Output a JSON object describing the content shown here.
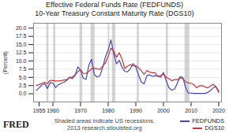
{
  "chart_data": {
    "type": "line",
    "title": "Effective Federal Funds Rate (FEDFUNDS)",
    "subtitle": "10-Year Treasury Constant Maturity Rate (DGS10)",
    "ylabel": "(Percent)",
    "annotations": [
      "FRED",
      "Shaded areas indicate US recessions.",
      "2013 research.stlouisfed.org"
    ],
    "x": [
      1954,
      1955,
      1956,
      1957,
      1958,
      1959,
      1960,
      1961,
      1962,
      1963,
      1964,
      1965,
      1966,
      1967,
      1968,
      1969,
      1970,
      1971,
      1972,
      1973,
      1974,
      1975,
      1976,
      1977,
      1978,
      1979,
      1980,
      1981,
      1982,
      1983,
      1984,
      1985,
      1986,
      1987,
      1988,
      1989,
      1990,
      1991,
      1992,
      1993,
      1994,
      1995,
      1996,
      1997,
      1998,
      1999,
      2000,
      2001,
      2002,
      2003,
      2004,
      2005,
      2006,
      2007,
      2008,
      2009,
      2010,
      2011,
      2012,
      2013,
      2014,
      2015,
      2016,
      2017,
      2018,
      2019,
      2020
    ],
    "series": [
      {
        "name": "FEDFUNDS",
        "color": "#4444bb",
        "values": [
          1.0,
          1.8,
          2.7,
          3.1,
          1.6,
          3.4,
          3.2,
          1.9,
          2.7,
          3.2,
          3.5,
          4.1,
          5.1,
          4.6,
          5.6,
          8.2,
          7.2,
          4.7,
          4.4,
          8.7,
          10.5,
          5.8,
          5.1,
          5.5,
          7.9,
          11.2,
          13.4,
          16.4,
          12.2,
          9.1,
          10.2,
          8.1,
          6.8,
          6.7,
          7.6,
          9.2,
          8.1,
          5.7,
          3.5,
          3.0,
          5.5,
          5.8,
          5.3,
          5.5,
          5.4,
          5.0,
          6.5,
          3.9,
          1.8,
          1.1,
          1.4,
          3.2,
          5.2,
          5.0,
          2.0,
          0.2,
          0.2,
          0.1,
          0.1,
          0.1,
          0.1,
          0.1,
          0.4,
          1.0,
          1.8,
          2.2,
          0.4
        ]
      },
      {
        "name": "DGS10",
        "color": "#cc3333",
        "values": [
          2.5,
          2.8,
          3.2,
          3.5,
          3.1,
          4.1,
          4.0,
          3.9,
          3.9,
          4.0,
          4.2,
          4.3,
          4.9,
          5.1,
          5.7,
          6.7,
          7.4,
          6.2,
          6.2,
          6.8,
          7.6,
          7.8,
          7.6,
          7.4,
          8.4,
          9.4,
          11.4,
          13.9,
          13.0,
          11.1,
          12.5,
          10.6,
          7.7,
          8.4,
          8.9,
          8.5,
          8.6,
          7.9,
          7.0,
          5.9,
          7.1,
          6.6,
          6.4,
          6.4,
          5.3,
          5.6,
          6.0,
          5.0,
          4.6,
          4.0,
          4.3,
          4.3,
          4.8,
          4.6,
          3.7,
          3.3,
          3.2,
          2.8,
          1.8,
          2.4,
          2.5,
          2.1,
          1.8,
          2.3,
          2.9,
          2.1,
          0.9
        ]
      }
    ],
    "recession_bands": {
      "color": "#bbbbbb",
      "ranges": [
        [
          1957.75,
          1958.5
        ],
        [
          1960.25,
          1961.0
        ],
        [
          1969.75,
          1970.75
        ],
        [
          1973.75,
          1975.25
        ],
        [
          1980.0,
          1980.5
        ],
        [
          1981.5,
          1982.75
        ],
        [
          1990.5,
          1991.25
        ],
        [
          2001.0,
          2001.75
        ],
        [
          2007.75,
          2009.5
        ]
      ]
    },
    "xlim": [
      1953,
      2021
    ],
    "xticks": [
      1955,
      1960,
      1970,
      1980,
      1990,
      2000,
      2010,
      2020
    ],
    "ylim": [
      -2.5,
      21.5
    ],
    "yticks": [
      {
        "value": 0,
        "label": "0.0"
      },
      2.5,
      {
        "value": 5,
        "label": "5.0"
      },
      7.5,
      {
        "value": 10,
        "label": "10.0"
      },
      12.5,
      {
        "value": 15,
        "label": "15.0"
      },
      17.5,
      {
        "value": 20,
        "label": "20.0"
      }
    ],
    "grid": "y",
    "legend": "lower right"
  }
}
